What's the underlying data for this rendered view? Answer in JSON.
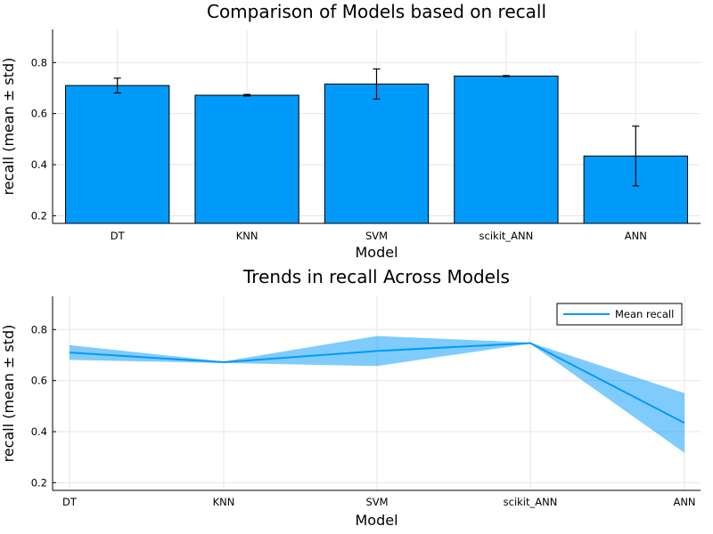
{
  "chart_data": [
    {
      "type": "bar",
      "title": "Comparison of Models based on recall",
      "xlabel": "Model",
      "ylabel": "recall (mean ± std)",
      "categories": [
        "DT",
        "KNN",
        "SVM",
        "scikit_ANN",
        "ANN"
      ],
      "values": [
        0.71,
        0.672,
        0.716,
        0.747,
        0.434
      ],
      "errors": [
        0.029,
        0.003,
        0.059,
        0.002,
        0.117
      ],
      "ylim": [
        0.17,
        0.93
      ],
      "yticks": [
        0.2,
        0.4,
        0.6,
        0.8
      ],
      "grid": true,
      "color": "#009AFA"
    },
    {
      "type": "line",
      "title": "Trends in recall Across Models",
      "xlabel": "Model",
      "ylabel": "recall (mean ± std)",
      "categories": [
        "DT",
        "KNN",
        "SVM",
        "scikit_ANN",
        "ANN"
      ],
      "series": [
        {
          "name": "Mean recall",
          "values": [
            0.71,
            0.672,
            0.716,
            0.747,
            0.434
          ],
          "errors": [
            0.029,
            0.003,
            0.059,
            0.002,
            0.117
          ]
        }
      ],
      "ylim": [
        0.17,
        0.93
      ],
      "yticks": [
        0.2,
        0.4,
        0.6,
        0.8
      ],
      "grid": true,
      "legend_position": "top-right",
      "color": "#009AFA"
    }
  ]
}
